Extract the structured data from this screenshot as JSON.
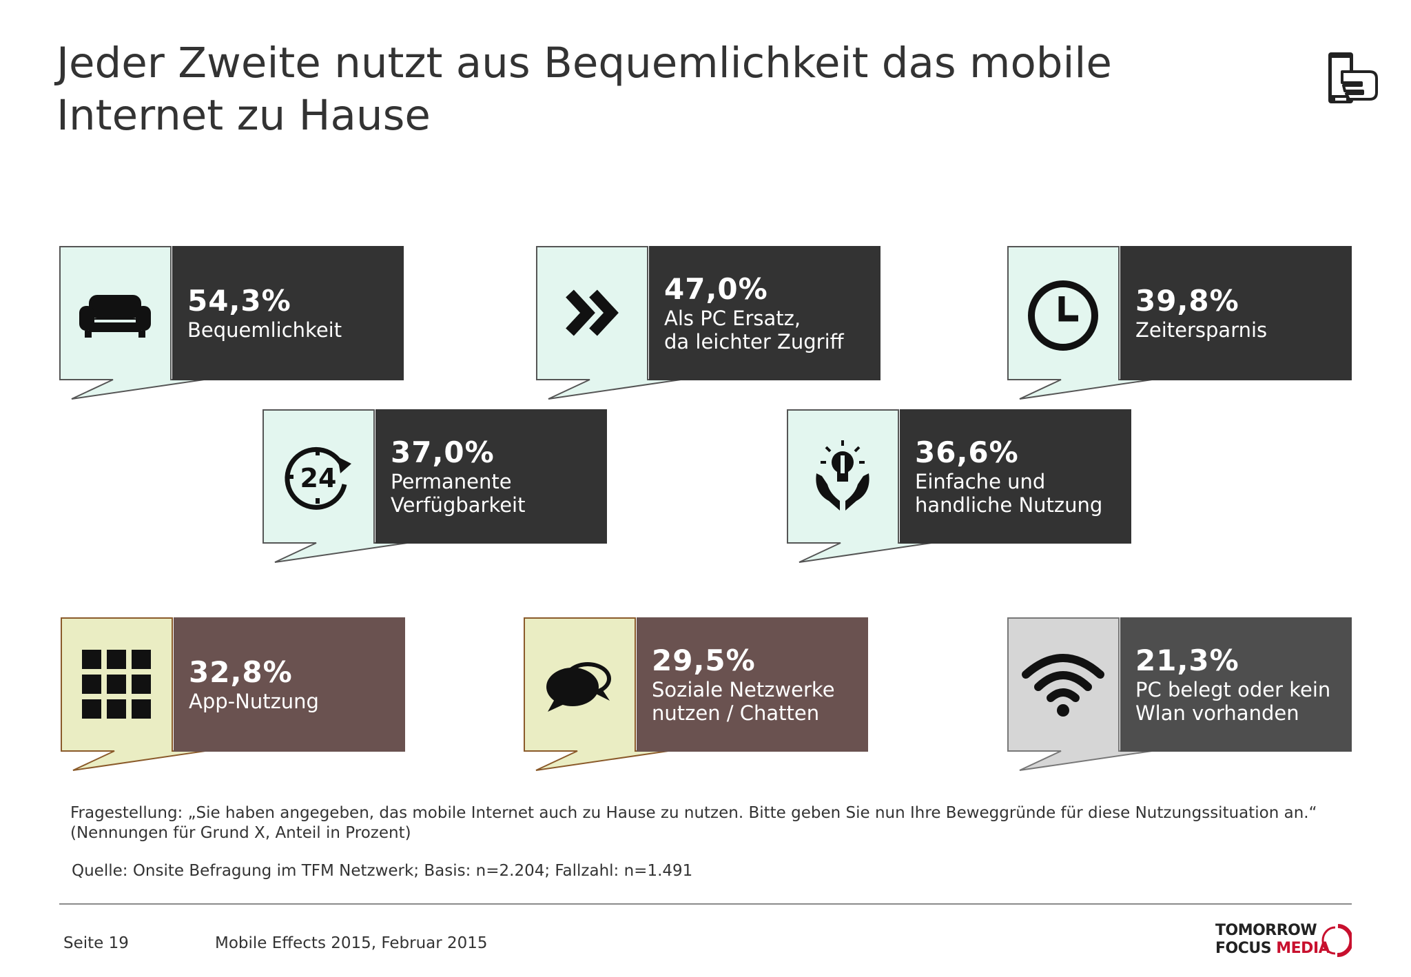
{
  "title": "Jeder Zweite nutzt aus Bequemlichkeit das mobile\nInternet zu Hause",
  "colors": {
    "dark": "#333333",
    "brown": "#6a5250",
    "gray": "#4e4e4e",
    "mint": "#e3f6ef",
    "cream": "#eaedc3",
    "lightgray": "#d6d6d6",
    "brand_red": "#c8102e"
  },
  "cards": [
    {
      "percent": "54,3%",
      "label": "Bequemlichkeit",
      "icon": "sofa-icon"
    },
    {
      "percent": "47,0%",
      "label": "Als PC Ersatz,\nda leichter Zugriff",
      "icon": "double-chevron-right-icon"
    },
    {
      "percent": "39,8%",
      "label": "Zeitersparnis",
      "icon": "clock-icon"
    },
    {
      "percent": "37,0%",
      "label": "Permanente\nVerfügbarkeit",
      "icon": "24-hours-icon"
    },
    {
      "percent": "36,6%",
      "label": "Einfache und\nhandliche Nutzung",
      "icon": "lightbulb-hands-icon"
    },
    {
      "percent": "32,8%",
      "label": "App-Nutzung",
      "icon": "app-grid-icon"
    },
    {
      "percent": "29,5%",
      "label": "Soziale Netzwerke\nnutzen / Chatten",
      "icon": "chat-bubbles-icon"
    },
    {
      "percent": "21,3%",
      "label": "PC belegt oder kein\nWlan vorhanden",
      "icon": "wifi-icon"
    }
  ],
  "question": "Fragestellung: „Sie haben angegeben, das mobile Internet auch zu Hause zu nutzen. Bitte geben Sie nun Ihre Beweggründe für diese Nutzungssituation an.“ (Nennungen für Grund X, Anteil in Prozent)",
  "source": "Quelle: Onsite Befragung im TFM Netzwerk; Basis: n=2.204; Fallzahl: n=1.491",
  "footer": {
    "page": "Seite 19",
    "document": "Mobile Effects 2015, Februar 2015"
  },
  "brand": {
    "line1": "TOMORROW",
    "line2_a": "FOCUS",
    "line2_b": "MEDIA"
  }
}
